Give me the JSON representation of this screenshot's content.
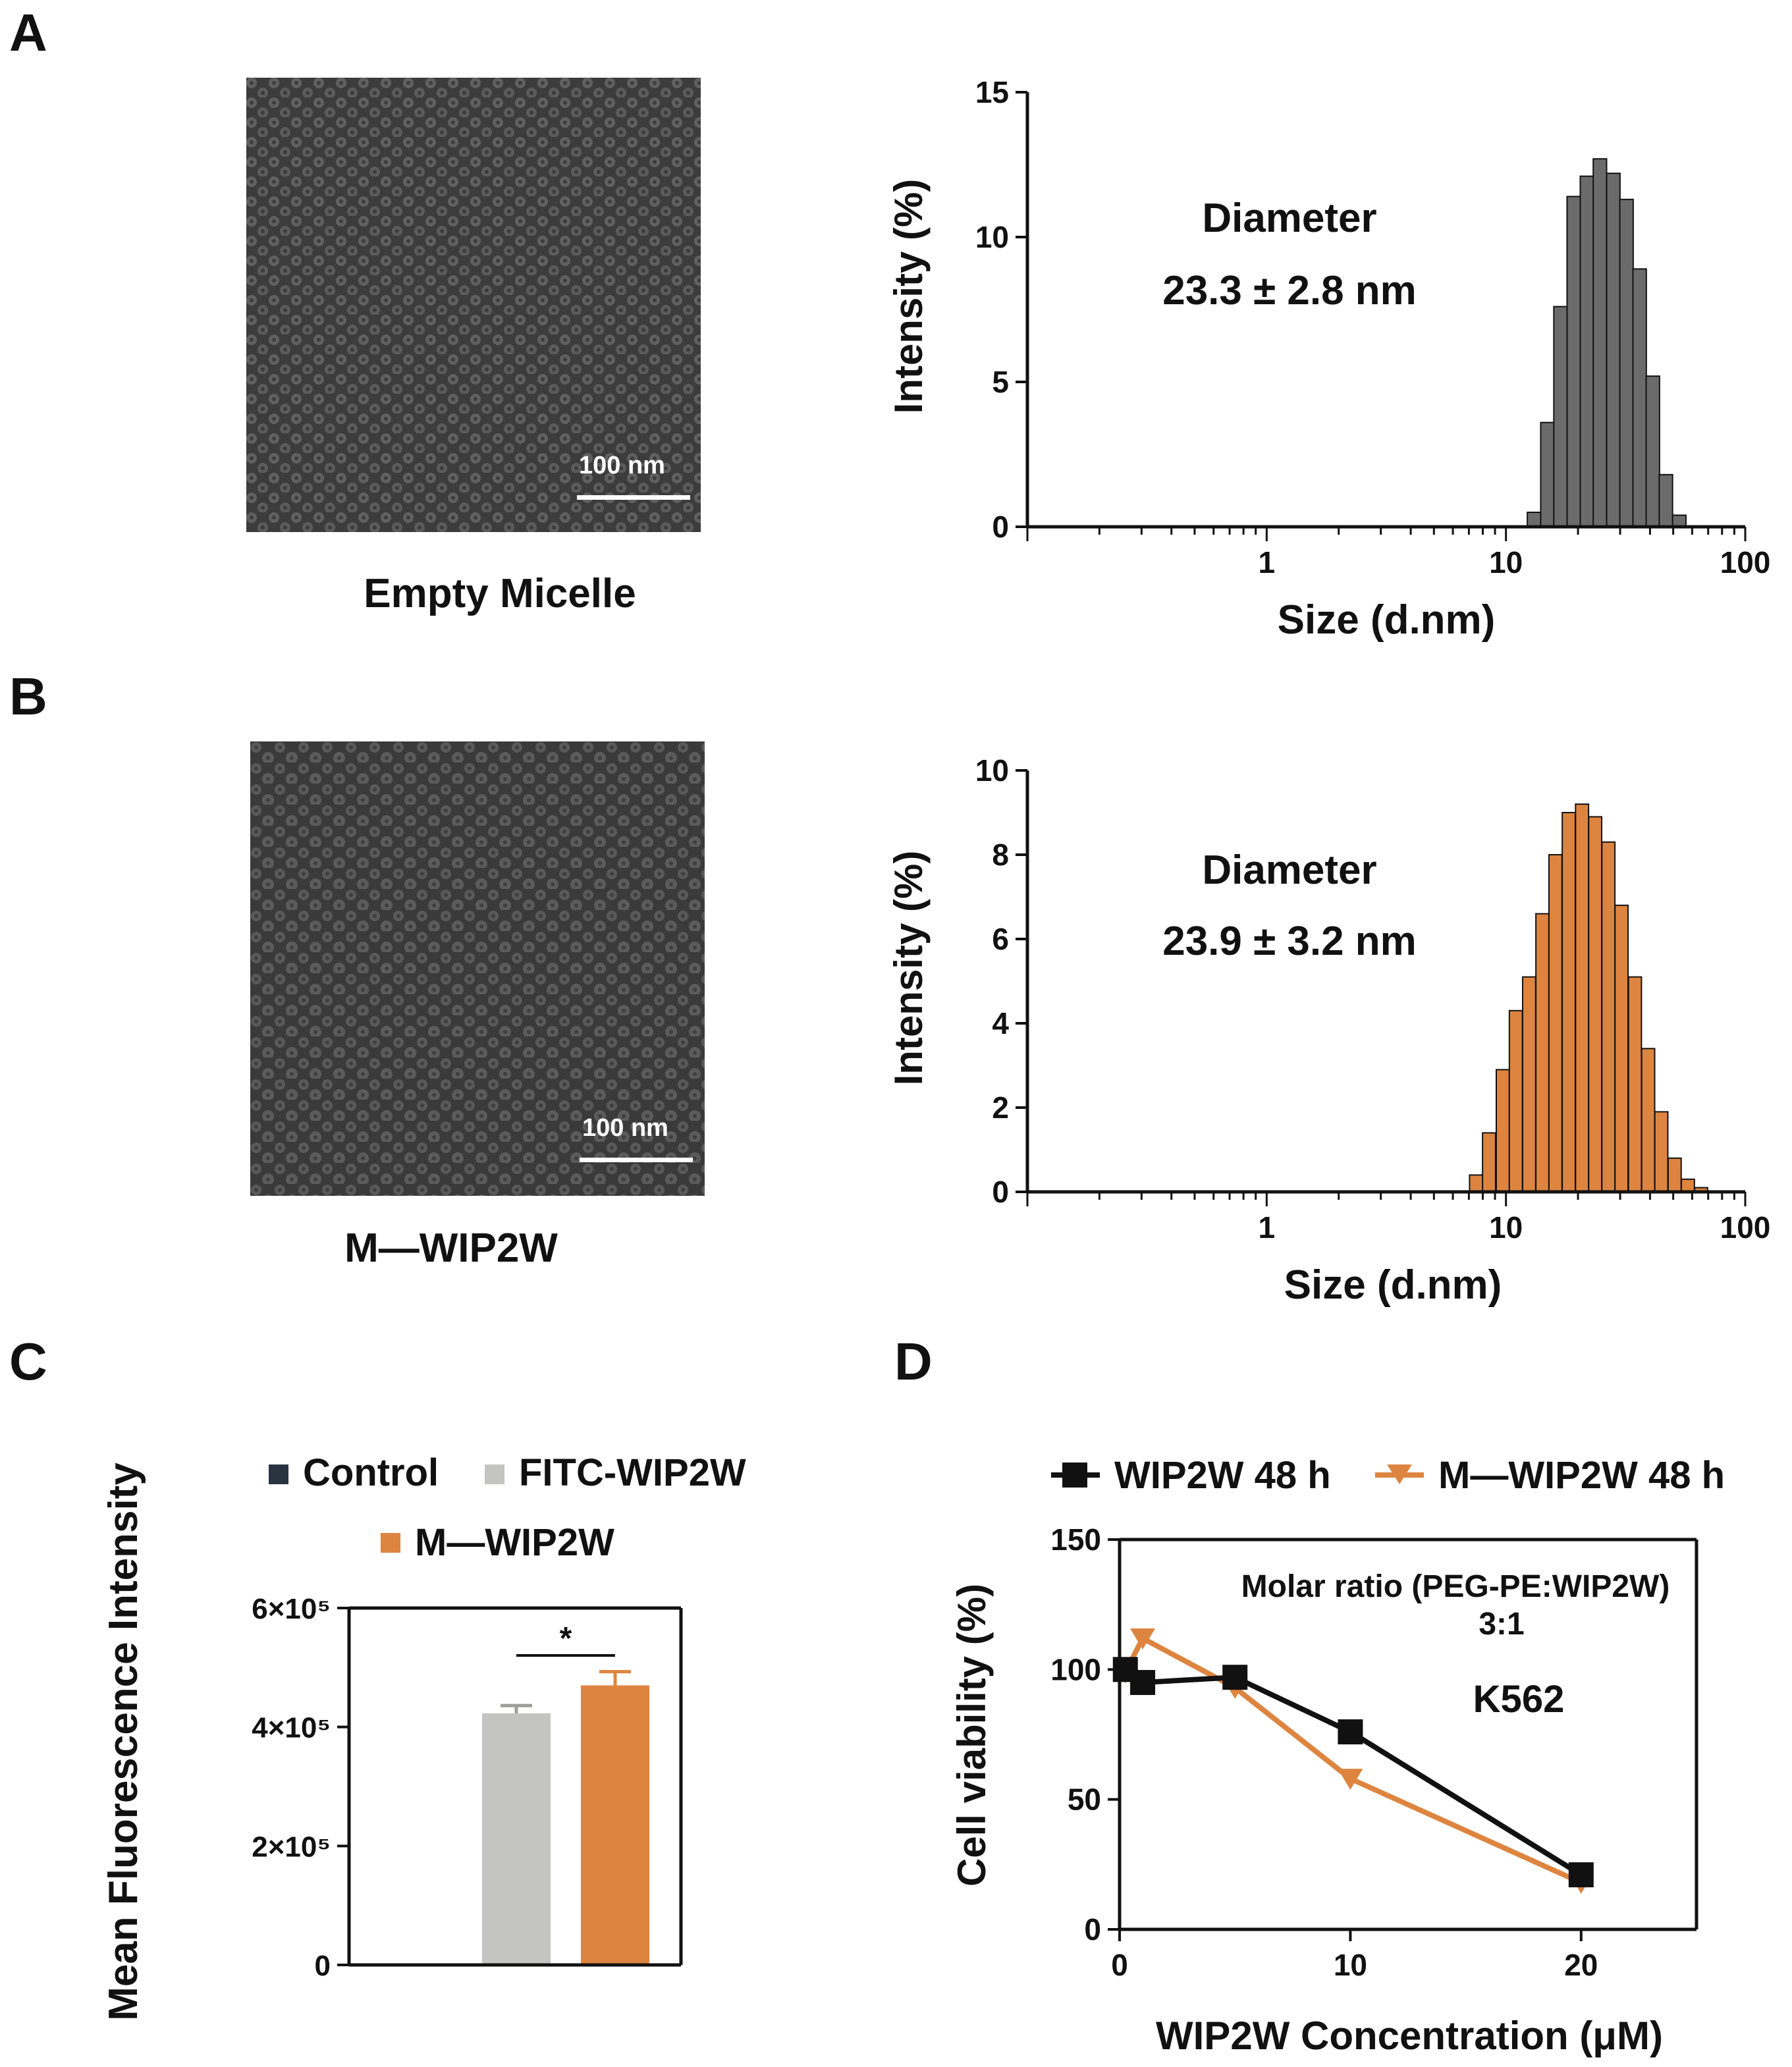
{
  "panels": {
    "a": {
      "letter": "A",
      "tem_caption": "Empty Micelle",
      "scalebar": "100 nm"
    },
    "b": {
      "letter": "B",
      "tem_caption": "M—WIP2W",
      "scalebar": "100 nm"
    },
    "c": {
      "letter": "C"
    },
    "d": {
      "letter": "D"
    }
  },
  "colors": {
    "gray_bar": "#6b6b6b",
    "orange": "#dd8540",
    "control": "#2a3441",
    "fitc": "#c4c4c0",
    "black": "#111111"
  },
  "chart_data": [
    {
      "id": "A-dls",
      "type": "bar",
      "title": "",
      "xlabel": "Size (d.nm)",
      "ylabel": "Intensity (%)",
      "xscale": "log",
      "xlim": [
        0.1,
        100
      ],
      "ylim": [
        0,
        15
      ],
      "yticks": [
        "0",
        "5",
        "10",
        "15"
      ],
      "xticks": [
        "1",
        "10",
        "100"
      ],
      "annotation": [
        "Diameter",
        "23.3 ± 2.8 nm"
      ],
      "bin_centers": [
        13.1,
        14.9,
        16.9,
        19.2,
        21.8,
        24.7,
        28.1,
        31.9,
        36.2,
        41.1,
        46.6,
        53.0
      ],
      "values": [
        0.5,
        3.6,
        7.6,
        11.4,
        12.1,
        12.7,
        12.2,
        11.3,
        8.9,
        5.2,
        1.8,
        0.4
      ]
    },
    {
      "id": "B-dls",
      "type": "bar",
      "title": "",
      "xlabel": "Size (d.nm)",
      "ylabel": "Intensity (%)",
      "xscale": "log",
      "xlim": [
        0.1,
        100
      ],
      "ylim": [
        0,
        10
      ],
      "yticks": [
        "0",
        "2",
        "4",
        "6",
        "8",
        "10"
      ],
      "xticks": [
        "1",
        "10",
        "100"
      ],
      "annotation": [
        "Diameter",
        "23.9 ± 3.2 nm"
      ],
      "bin_centers": [
        7.5,
        8.5,
        9.7,
        11.0,
        12.5,
        14.2,
        16.1,
        18.3,
        20.8,
        23.6,
        26.8,
        30.4,
        34.6,
        39.3,
        44.6,
        50.7,
        57.6,
        65.4
      ],
      "values": [
        0.4,
        1.4,
        2.9,
        4.3,
        5.1,
        6.6,
        8.0,
        9.0,
        9.2,
        8.9,
        8.3,
        6.8,
        5.1,
        3.4,
        1.9,
        0.8,
        0.3,
        0.1
      ]
    },
    {
      "id": "C-mfi",
      "type": "bar",
      "title": "",
      "xlabel": "",
      "ylabel": "Mean Fluorescence Intensity",
      "ylim": [
        0,
        600000
      ],
      "yticks": [
        "0",
        "2×10⁵",
        "4×10⁵",
        "6×10⁵"
      ],
      "categories": [
        "Control",
        "FITC-WIP2W",
        "M—WIP2W"
      ],
      "values": [
        1000,
        423000,
        470000
      ],
      "errors": [
        0,
        13000,
        23000
      ],
      "significance": "*",
      "legend_position": "top"
    },
    {
      "id": "D-viability",
      "type": "line",
      "title": "",
      "xlabel": "WIP2W Concentration (μM)",
      "ylabel": "Cell viability (%)",
      "xlim": [
        0,
        25
      ],
      "ylim": [
        0,
        150
      ],
      "xticks": [
        "0",
        "10",
        "20"
      ],
      "yticks": [
        "0",
        "50",
        "100",
        "150"
      ],
      "annotations": [
        "Molar ratio (PEG-PE:WIP2W)",
        "3:1",
        "K562"
      ],
      "series": [
        {
          "name": "WIP2W 48 h",
          "marker": "square",
          "x": [
            0.25,
            1,
            5,
            10,
            20
          ],
          "y": [
            100,
            95,
            97,
            76,
            21
          ]
        },
        {
          "name": "M—WIP2W 48 h",
          "marker": "triangle-down",
          "x": [
            0.25,
            1,
            5,
            10,
            20
          ],
          "y": [
            99,
            112,
            93,
            58,
            18
          ]
        }
      ],
      "legend_position": "top"
    }
  ]
}
